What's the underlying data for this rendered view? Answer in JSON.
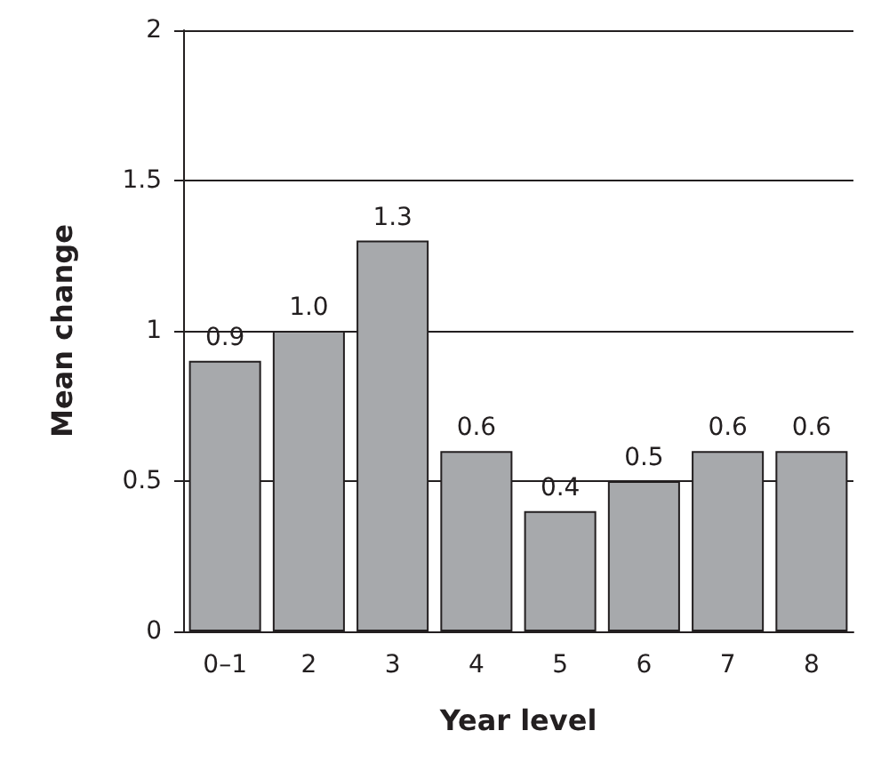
{
  "chart_data": {
    "type": "bar",
    "xlabel": "Year level",
    "ylabel": "Mean change",
    "categories": [
      "0–1",
      "2",
      "3",
      "4",
      "5",
      "6",
      "7",
      "8"
    ],
    "values": [
      0.9,
      1.0,
      1.3,
      0.6,
      0.4,
      0.5,
      0.6,
      0.6
    ],
    "value_labels": [
      "0.9",
      "1.0",
      "1.3",
      "0.6",
      "0.4",
      "0.5",
      "0.6",
      "0.6"
    ],
    "color": "#a7a9ac",
    "ylim": [
      0,
      2
    ],
    "yticks": [
      0,
      0.5,
      1,
      1.5,
      2
    ],
    "grid": "y"
  }
}
